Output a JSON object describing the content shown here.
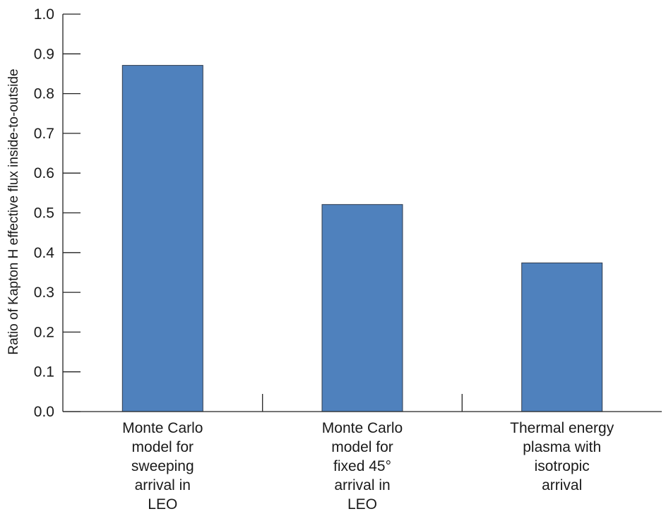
{
  "chart_data": {
    "type": "bar",
    "title": "",
    "xlabel": "",
    "ylabel": "Ratio of Kapton H effective flux inside-to-outside",
    "ylim": [
      0,
      1.0
    ],
    "yticks": [
      "0.0",
      "0.1",
      "0.2",
      "0.3",
      "0.4",
      "0.5",
      "0.6",
      "0.7",
      "0.8",
      "0.9",
      "1.0"
    ],
    "grid": false,
    "legend": "none",
    "bar_color": "#4f81bd",
    "categories": [
      "Monte Carlo model for sweeping arrival in LEO",
      "Monte Carlo model for fixed 45° arrival in LEO",
      "Thermal energy plasma with isotropic arrival"
    ],
    "category_label_lines": [
      [
        "Monte Carlo",
        "model for",
        "sweeping",
        "arrival in",
        "LEO"
      ],
      [
        "Monte Carlo",
        "model for",
        "fixed 45°",
        "arrival in",
        "LEO"
      ],
      [
        "Thermal energy",
        "plasma with",
        "isotropic",
        "arrival"
      ]
    ],
    "values": [
      0.871,
      0.521,
      0.374
    ]
  }
}
